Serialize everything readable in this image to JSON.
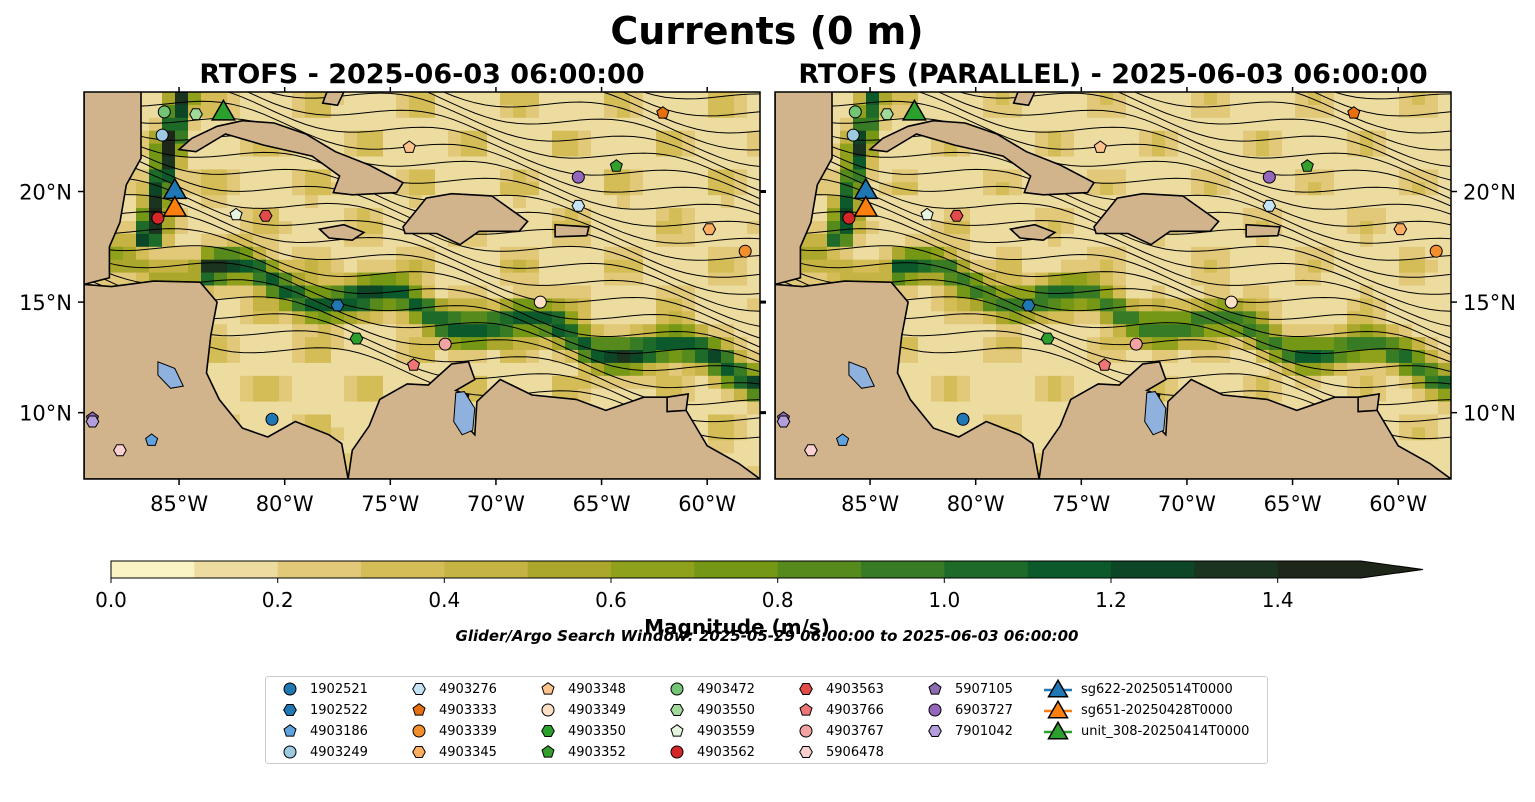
{
  "figure": {
    "suptitle": "Currents (0 m)",
    "search_window": "Glider/Argo Search Window: 2025-05-29 06:00:00 to 2025-06-03 06:00:00"
  },
  "chart_data": [
    {
      "type": "heatmap",
      "panel": "left",
      "title": "RTOFS - 2025-06-03 06:00:00",
      "variable": "current magnitude with streamlines",
      "xlim": [
        -89.5,
        -57.5
      ],
      "ylim": [
        7,
        24.5
      ],
      "xticks": [
        "85°W",
        "80°W",
        "75°W",
        "70°W",
        "65°W",
        "60°W"
      ],
      "yticks": [
        "10°N",
        "15°N",
        "20°N"
      ],
      "land_color": "#d2b48c",
      "lake_color": "#8fb1dd"
    },
    {
      "type": "heatmap",
      "panel": "right",
      "title": "RTOFS (PARALLEL) - 2025-06-03 06:00:00",
      "variable": "current magnitude with streamlines",
      "xlim": [
        -89.5,
        -57.5
      ],
      "ylim": [
        7,
        24.5
      ],
      "xticks": [
        "85°W",
        "80°W",
        "75°W",
        "70°W",
        "65°W",
        "60°W"
      ],
      "yticks": [
        "10°N",
        "15°N",
        "20°N"
      ],
      "land_color": "#d2b48c",
      "lake_color": "#8fb1dd"
    }
  ],
  "colorbar": {
    "label": "Magnitude (m/s)",
    "min": 0.0,
    "max": 1.5,
    "step": 0.1,
    "extend": "max",
    "ticks": [
      "0.0",
      "0.2",
      "0.4",
      "0.6",
      "0.8",
      "1.0",
      "1.2",
      "1.4"
    ],
    "colors": [
      "#faf3c4",
      "#eddca0",
      "#e1c979",
      "#d4bd57",
      "#c5b344",
      "#aaa72c",
      "#8fa01b",
      "#749716",
      "#578a1d",
      "#387b25",
      "#1e6b29",
      "#0c5a2b",
      "#0d4527",
      "#1b3420",
      "#1d2618"
    ]
  },
  "legend": [
    {
      "label": "1902521",
      "marker": "circle",
      "color": "#1f77b4"
    },
    {
      "label": "1902522",
      "marker": "hexagon",
      "color": "#1f77b4"
    },
    {
      "label": "4903186",
      "marker": "pentagon",
      "color": "#5fa2dd"
    },
    {
      "label": "4903249",
      "marker": "circle",
      "color": "#9ecae1"
    },
    {
      "label": "4903276",
      "marker": "hexagon",
      "color": "#c6e2f5"
    },
    {
      "label": "4903333",
      "marker": "pentagon",
      "color": "#e6700f"
    },
    {
      "label": "4903339",
      "marker": "circle",
      "color": "#f28e2b"
    },
    {
      "label": "4903345",
      "marker": "hexagon",
      "color": "#fdae61"
    },
    {
      "label": "4903348",
      "marker": "pentagon",
      "color": "#fdc38d"
    },
    {
      "label": "4903349",
      "marker": "circle",
      "color": "#fde0c5"
    },
    {
      "label": "4903350",
      "marker": "hexagon",
      "color": "#2ca02c"
    },
    {
      "label": "4903352",
      "marker": "pentagon",
      "color": "#33a02c"
    },
    {
      "label": "4903472",
      "marker": "circle",
      "color": "#74c476"
    },
    {
      "label": "4903550",
      "marker": "hexagon",
      "color": "#a1d99b"
    },
    {
      "label": "4903559",
      "marker": "pentagon",
      "color": "#e5f5e0"
    },
    {
      "label": "4903562",
      "marker": "circle",
      "color": "#d62728"
    },
    {
      "label": "4903563",
      "marker": "hexagon",
      "color": "#e34a4a"
    },
    {
      "label": "4903766",
      "marker": "pentagon",
      "color": "#f07575"
    },
    {
      "label": "4903767",
      "marker": "circle",
      "color": "#f4a3a3"
    },
    {
      "label": "5906478",
      "marker": "hexagon",
      "color": "#fbd0d0"
    },
    {
      "label": "5907105",
      "marker": "pentagon",
      "color": "#8c6bb1"
    },
    {
      "label": "6903727",
      "marker": "circle",
      "color": "#9467bd"
    },
    {
      "label": "7901042",
      "marker": "hexagon",
      "color": "#b39ddb"
    },
    {
      "label": "sg622-20250514T0000",
      "marker": "triangle",
      "color": "#1f77b4"
    },
    {
      "label": "sg651-20250428T0000",
      "marker": "triangle",
      "color": "#ff7f0e"
    },
    {
      "label": "unit_308-20250414T0000",
      "marker": "triangle",
      "color": "#2ca02c"
    }
  ],
  "markers": [
    {
      "label": "1902521",
      "lon": -80.6,
      "lat": 9.7
    },
    {
      "label": "1902522",
      "lon": -77.5,
      "lat": 14.85
    },
    {
      "label": "4903186",
      "lon": -86.3,
      "lat": 8.75
    },
    {
      "label": "4903249",
      "lon": -85.8,
      "lat": 22.55
    },
    {
      "label": "4903276",
      "lon": -66.1,
      "lat": 19.35
    },
    {
      "label": "4903333",
      "lon": -62.1,
      "lat": 23.55
    },
    {
      "label": "4903339",
      "lon": -58.2,
      "lat": 17.3
    },
    {
      "label": "4903345",
      "lon": -59.9,
      "lat": 18.3
    },
    {
      "label": "4903348",
      "lon": -74.1,
      "lat": 22.0
    },
    {
      "label": "4903349",
      "lon": -67.9,
      "lat": 15.0
    },
    {
      "label": "4903350",
      "lon": -76.6,
      "lat": 13.35
    },
    {
      "label": "4903352",
      "lon": -64.3,
      "lat": 21.15
    },
    {
      "label": "4903472",
      "lon": -85.7,
      "lat": 23.6
    },
    {
      "label": "4903550",
      "lon": -84.2,
      "lat": 23.5
    },
    {
      "label": "4903559",
      "lon": -82.3,
      "lat": 18.95
    },
    {
      "label": "4903562",
      "lon": -86.0,
      "lat": 18.8
    },
    {
      "label": "4903563",
      "lon": -80.9,
      "lat": 18.9
    },
    {
      "label": "4903766",
      "lon": -73.9,
      "lat": 12.15
    },
    {
      "label": "4903767",
      "lon": -72.4,
      "lat": 13.1
    },
    {
      "label": "5906478",
      "lon": -87.8,
      "lat": 8.3
    },
    {
      "label": "5907105",
      "lon": -89.1,
      "lat": 9.75
    },
    {
      "label": "6903727",
      "lon": -66.1,
      "lat": 20.65
    },
    {
      "label": "7901042",
      "lon": -89.1,
      "lat": 9.6
    },
    {
      "label": "sg622-20250514T0000",
      "lon": -85.2,
      "lat": 20.1
    },
    {
      "label": "sg651-20250428T0000",
      "lon": -85.2,
      "lat": 19.3
    },
    {
      "label": "unit_308-20250414T0000",
      "lon": -82.9,
      "lat": 23.65
    }
  ]
}
